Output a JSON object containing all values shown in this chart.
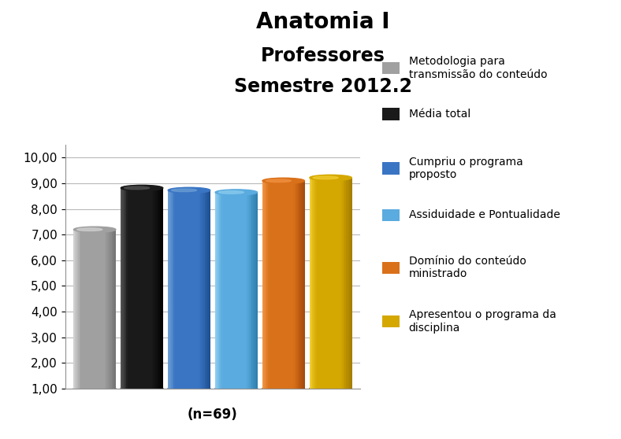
{
  "title_line1": "Anatomia I",
  "title_line2": "Professores",
  "title_line3": "Semestre 2012.2",
  "xlabel": "(n=69)",
  "ylim": [
    1.0,
    10.0
  ],
  "yticks": [
    1.0,
    2.0,
    3.0,
    4.0,
    5.0,
    6.0,
    7.0,
    8.0,
    9.0,
    10.0
  ],
  "bar_values": [
    7.2,
    8.82,
    8.73,
    8.65,
    9.1,
    9.22
  ],
  "bar_colors_main": [
    "#a0a0a0",
    "#1a1a1a",
    "#3a75c4",
    "#5aabdf",
    "#d9711a",
    "#d4a800"
  ],
  "bar_colors_dark": [
    "#707070",
    "#000000",
    "#1a4d8c",
    "#2a7aaa",
    "#a04808",
    "#a07800"
  ],
  "bar_colors_light": [
    "#d0d0d0",
    "#505050",
    "#6a9dd4",
    "#8acbef",
    "#f09040",
    "#f0cc30"
  ],
  "legend_labels": [
    "Metodologia para\ntransmissão do conteúdo",
    "Média total",
    "Cumpriu o programa\nproposto",
    "Assiduidade e Pontualidade",
    "Domínio do conteúdo\nministrado",
    "Apresentou o programa da\ndisciplina"
  ],
  "legend_colors": [
    "#a0a0a0",
    "#1a1a1a",
    "#3a75c4",
    "#5aabdf",
    "#d9711a",
    "#d4a800"
  ],
  "background_color": "#ffffff",
  "grid_color": "#b8b8b8",
  "title_fontsize": 20,
  "subtitle_fontsize": 17,
  "tick_fontsize": 11,
  "legend_fontsize": 10,
  "xlabel_fontsize": 12
}
